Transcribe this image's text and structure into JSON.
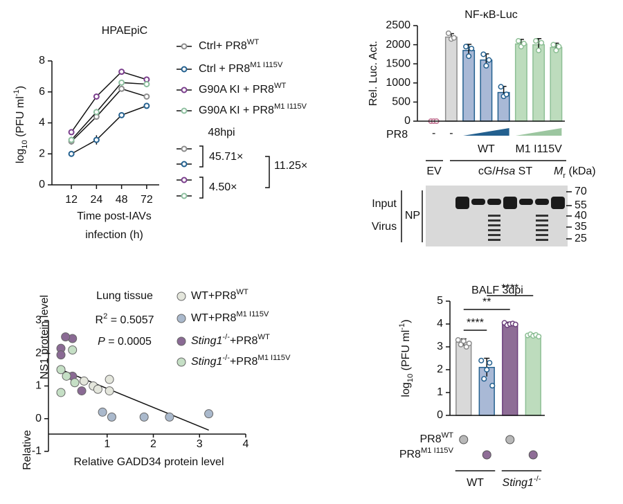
{
  "chart_data": [
    {
      "type": "line",
      "title": "HPAEpiC",
      "categories": [
        "12",
        "24",
        "48",
        "72"
      ],
      "x_label": [
        "Time post-IAVs",
        "infection (h)"
      ],
      "y_label": [
        {
          "t": "log"
        },
        {
          "t": "10",
          "s": "sub"
        },
        {
          "t": " (PFU ml"
        },
        {
          "t": "-1",
          "s": "sup"
        },
        {
          "t": ")"
        }
      ],
      "ylim": [
        0,
        8
      ],
      "yticks": [
        0,
        2,
        4,
        6,
        8
      ],
      "series": [
        {
          "name": [
            {
              "t": "Ctrl+ PR8"
            },
            {
              "t": "WT",
              "s": "sup"
            }
          ],
          "color": "#8c8c8c",
          "values": [
            2.8,
            4.4,
            6.2,
            5.7
          ],
          "errors": [
            0.2,
            0.2,
            0.15,
            0.1
          ]
        },
        {
          "name": [
            {
              "t": "Ctrl + PR8"
            },
            {
              "t": "M1 I115V",
              "s": "sup"
            }
          ],
          "color": "#23608f",
          "values": [
            2.0,
            2.9,
            4.5,
            5.1
          ],
          "errors": [
            0.15,
            0.3,
            0.15,
            0.1
          ]
        },
        {
          "name": [
            {
              "t": "G90A KI + PR8"
            },
            {
              "t": "WT",
              "s": "sup"
            }
          ],
          "color": "#7a3d8c",
          "values": [
            3.4,
            5.7,
            7.3,
            6.8
          ],
          "errors": [
            0.1,
            0.1,
            0.15,
            0.1
          ]
        },
        {
          "name": [
            {
              "t": "G90A KI + PR8"
            },
            {
              "t": "M1 I115V",
              "s": "sup"
            }
          ],
          "color": "#8dbf9f",
          "values": [
            2.9,
            4.7,
            6.6,
            6.5
          ],
          "errors": [
            0.2,
            0.2,
            0.15,
            0.2
          ]
        }
      ],
      "annotations": {
        "timepoint": "48hpi",
        "fold_ctrl": "45.71×",
        "fold_ki": "4.50×",
        "fold_between": "11.25×"
      }
    },
    {
      "type": "bar",
      "title": "NF-κB-Luc",
      "y_label": "Rel. Luc. Act.",
      "ylim": [
        0,
        2500
      ],
      "yticks": [
        0,
        500,
        1000,
        1500,
        2000,
        2500
      ],
      "values": [
        0,
        2200,
        1850,
        1600,
        750,
        2020,
        2000,
        1930
      ],
      "errors": [
        20,
        90,
        160,
        160,
        160,
        120,
        160,
        110
      ],
      "points": [
        [
          0,
          0,
          0
        ],
        [
          2300,
          2150,
          2180
        ],
        [
          1950,
          1700,
          1900
        ],
        [
          1750,
          1450,
          1600
        ],
        [
          900,
          650,
          700
        ],
        [
          2100,
          1950,
          2030
        ],
        [
          2100,
          1850,
          2050
        ],
        [
          2000,
          1850,
          1950
        ]
      ],
      "colors": [
        "#e8b4c8",
        "#d9d9d9",
        "#a9b9d6",
        "#a9b9d6",
        "#a9b9d6",
        "#bddcbd",
        "#bddcbd",
        "#bddcbd"
      ],
      "edge_colors": [
        "#c07090",
        "#8c8c8c",
        "#23608f",
        "#23608f",
        "#23608f",
        "#8dbf95",
        "#8dbf95",
        "#8dbf95"
      ],
      "row_label": "PR8",
      "row_markers": [
        "-",
        "-"
      ],
      "groups": [
        {
          "label": "WT",
          "color": "#23608f"
        },
        {
          "label": "M1 I115V",
          "color": "#9cc6a0"
        }
      ]
    },
    {
      "type": "scatter",
      "x_label": "Relative GADD34 protein level",
      "y_label": [
        "Relative",
        "NS1 protein level"
      ],
      "xlim": [
        -0.27,
        4
      ],
      "xticks": [
        1,
        2,
        3,
        4
      ],
      "ylim": [
        -1,
        3
      ],
      "yticks": [
        -1,
        0,
        1,
        2,
        3
      ],
      "series": [
        {
          "name": [
            {
              "t": "WT+PR8"
            },
            {
              "t": "WT",
              "s": "sup"
            }
          ],
          "color": "#e4e6dc",
          "text_color": "#222",
          "x": [
            0.5,
            0.7,
            1.05,
            1.05,
            0.8
          ],
          "y": [
            1.15,
            1.0,
            1.2,
            0.85,
            0.9
          ]
        },
        {
          "name": [
            {
              "t": "WT+PR8"
            },
            {
              "t": "M1 I115V",
              "s": "sup"
            }
          ],
          "color": "#aab9cc",
          "text_color": "#23608f",
          "x": [
            0.9,
            1.1,
            1.8,
            2.35,
            3.2
          ],
          "y": [
            0.2,
            0.05,
            0.05,
            0.05,
            0.15
          ]
        },
        {
          "name": [
            {
              "t": "Sting1",
              "s": "i"
            },
            {
              "t": "-/-",
              "s": "sup"
            },
            {
              "t": "+PR8"
            },
            {
              "t": "WT",
              "s": "sup"
            }
          ],
          "color": "#8a6a94",
          "text_color": "#7a3d8c",
          "x": [
            0.0,
            0.0,
            0.25,
            0.25,
            0.45,
            0.1
          ],
          "y": [
            2.15,
            1.95,
            2.45,
            1.3,
            0.85,
            2.5
          ]
        },
        {
          "name": [
            {
              "t": "Sting1",
              "s": "i"
            },
            {
              "t": "-/-",
              "s": "sup"
            },
            {
              "t": "+PR8"
            },
            {
              "t": "M1 I115V",
              "s": "sup"
            }
          ],
          "color": "#c5dfc5",
          "text_color": "#8dbf9f",
          "x": [
            0.0,
            0.0,
            0.12,
            0.25,
            0.3
          ],
          "y": [
            1.5,
            0.8,
            1.3,
            2.1,
            1.1
          ]
        }
      ],
      "fit": {
        "x": [
          0,
          3.2
        ],
        "y": [
          1.5,
          -0.35
        ]
      },
      "annotations": {
        "tissue": "Lung tissue",
        "r2": [
          {
            "t": "R"
          },
          {
            "t": "2",
            "s": "sup"
          },
          {
            "t": " = 0.5057"
          }
        ],
        "p": [
          {
            "t": "P",
            "s": "i"
          },
          {
            "t": " = 0.0005"
          }
        ]
      }
    },
    {
      "type": "bar",
      "title": "BALF 3dpi",
      "y_label": [
        {
          "t": "log"
        },
        {
          "t": "10",
          "s": "sub"
        },
        {
          "t": " (PFU ml"
        },
        {
          "t": "-1",
          "s": "sup"
        },
        {
          "t": ")"
        }
      ],
      "ylim": [
        0,
        5
      ],
      "yticks": [
        0,
        1,
        2,
        3,
        4,
        5
      ],
      "values": [
        3.2,
        2.1,
        4.0,
        3.5
      ],
      "errors": [
        0.15,
        0.4,
        0.08,
        0.08
      ],
      "points": [
        [
          3.3,
          3.1,
          3.25,
          3.0,
          3.15
        ],
        [
          2.4,
          1.6,
          2.0,
          2.3,
          1.3
        ],
        [
          4.05,
          3.95,
          4.0,
          4.02,
          3.98
        ],
        [
          3.5,
          3.55,
          3.48,
          3.52,
          3.45
        ]
      ],
      "colors": [
        "#d9d9d9",
        "#a9b9d6",
        "#8e6d96",
        "#bddcbd"
      ],
      "edge_colors": [
        "#8c8c8c",
        "#23608f",
        "#6b3f7b",
        "#8dbf95"
      ],
      "significance": [
        {
          "pair": [
            0,
            1
          ],
          "label": "****"
        },
        {
          "pair": [
            0,
            2
          ],
          "label": "**"
        },
        {
          "pair": [
            1,
            3
          ],
          "label": "****"
        }
      ],
      "conditions": [
        {
          "label": [
            {
              "t": "PR8"
            },
            {
              "t": "WT",
              "s": "sup"
            }
          ],
          "color": "#b8b8b8",
          "marks": [
            true,
            false,
            true,
            false
          ]
        },
        {
          "label": [
            {
              "t": "PR8"
            },
            {
              "t": "M1 I115V",
              "s": "sup"
            }
          ],
          "color": "#8e6d96",
          "marks": [
            false,
            true,
            false,
            true
          ]
        }
      ],
      "genotypes": [
        [
          {
            "t": "WT"
          }
        ],
        [
          {
            "t": "Sting1",
            "s": "i"
          },
          {
            "t": "-/-",
            "s": "sup"
          }
        ]
      ]
    }
  ],
  "blot": {
    "empty_lane": "EV",
    "construct": [
      {
        "t": "cG/"
      },
      {
        "t": "Hsa",
        "s": "i"
      },
      {
        "t": " ST"
      }
    ],
    "mr_label": [
      {
        "t": "M",
        "s": "i"
      },
      {
        "t": "r",
        "s": "sub"
      },
      {
        "t": " (kDa)"
      }
    ],
    "markers": [
      70,
      55,
      40,
      35,
      25
    ],
    "sample": [
      "Input",
      "Virus"
    ],
    "antibody": "NP"
  }
}
